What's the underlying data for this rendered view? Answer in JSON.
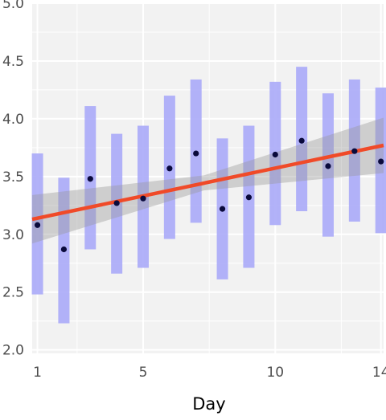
{
  "chart_data": {
    "type": "scatter",
    "title": "",
    "xlabel": "Day",
    "ylabel": "",
    "xlim": [
      0.8,
      14.1
    ],
    "ylim": [
      1.97,
      5.0
    ],
    "x_ticks": [
      1,
      5,
      10,
      14
    ],
    "x_minor_ticks": [
      2.5,
      7.5,
      12.5
    ],
    "y_ticks": [
      2.0,
      2.5,
      3.0,
      3.5,
      4.0,
      4.5,
      5.0
    ],
    "y_tick_labels": [
      "2.0",
      "2.5",
      "3.0",
      "3.5",
      "4.0",
      "4.5",
      "5.0"
    ],
    "grid": true,
    "series": [
      {
        "x": [
          1,
          2,
          3,
          4,
          5,
          6,
          7,
          8,
          9,
          10,
          11,
          12,
          13,
          14
        ],
        "mean": [
          3.08,
          2.87,
          3.48,
          3.27,
          3.31,
          3.57,
          3.7,
          3.22,
          3.32,
          3.69,
          3.81,
          3.59,
          3.72,
          3.63
        ],
        "lower": [
          2.48,
          2.23,
          2.87,
          2.66,
          2.71,
          2.96,
          3.1,
          2.61,
          2.71,
          3.08,
          3.2,
          2.98,
          3.11,
          3.01
        ],
        "upper": [
          3.7,
          3.49,
          4.11,
          3.87,
          3.94,
          4.2,
          4.34,
          3.83,
          3.94,
          4.32,
          4.45,
          4.22,
          4.34,
          4.27
        ]
      }
    ],
    "trend": {
      "x_start": 0.8,
      "y_start": 3.13,
      "x_end": 14.1,
      "y_end": 3.77,
      "band_start": [
        2.92,
        3.34
      ],
      "band_center_x": 7.3,
      "band_center": [
        3.38,
        3.51
      ],
      "band_end": [
        3.53,
        4.01
      ]
    },
    "colors": {
      "panel": "#f2f2f2",
      "grid": "#ffffff",
      "error_bar": "#aaaaf8",
      "point": "#0a0a3c",
      "trend_line": "#f04a28",
      "ribbon": "#999999"
    }
  }
}
